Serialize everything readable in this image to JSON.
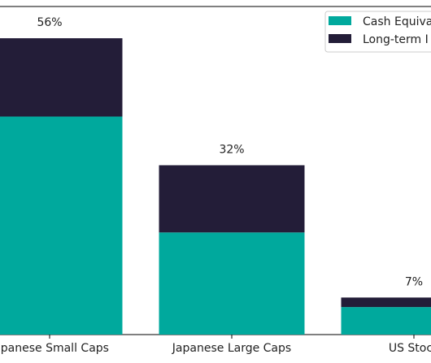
{
  "chart_data": {
    "type": "bar",
    "stacked": true,
    "categories": [
      "Japanese Small Caps",
      "Japanese Large Caps",
      "US Stocks"
    ],
    "visible_category_labels": [
      "Japanese Small Caps",
      "Japanese Large Caps",
      "US Stock"
    ],
    "series": [
      {
        "name": "Cash Equivalents",
        "legend_label": "Cash Equiva",
        "color": "#00a99d",
        "values": [
          41.2,
          19.3,
          5.2
        ]
      },
      {
        "name": "Long-term Investments",
        "legend_label": "Long-term I",
        "color": "#231d38",
        "values": [
          14.8,
          12.7,
          1.8
        ]
      }
    ],
    "totals": [
      56,
      32,
      7
    ],
    "total_labels": [
      "56%",
      "32%",
      "7%"
    ],
    "ylim": [
      0,
      62
    ],
    "legend_position": "upper right",
    "grid": false
  }
}
